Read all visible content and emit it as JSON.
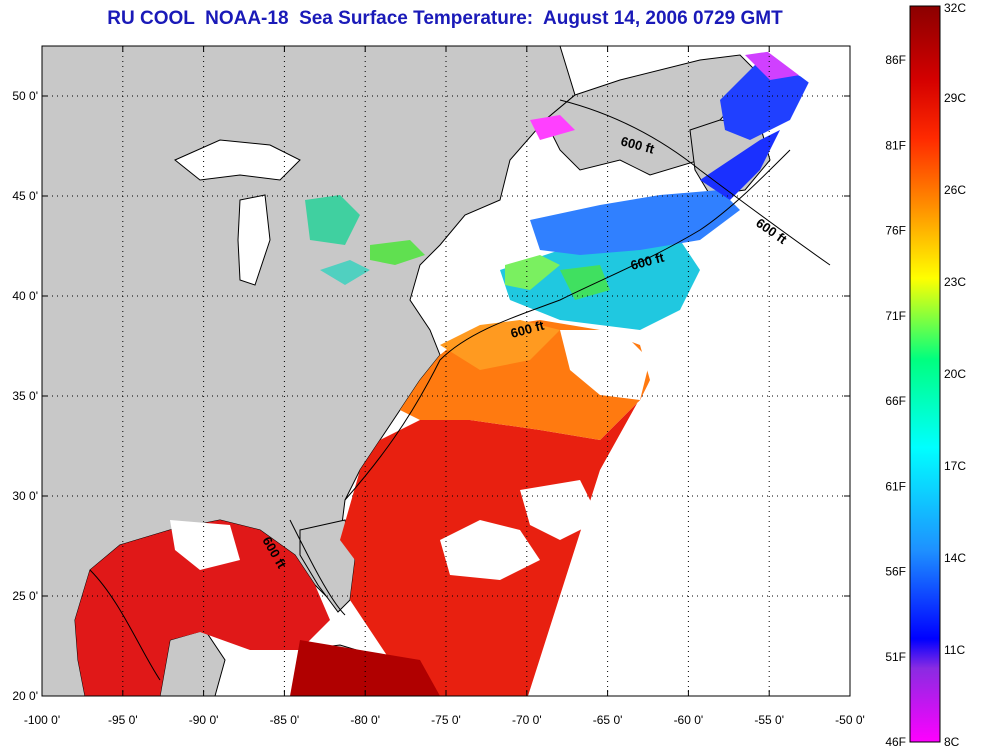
{
  "title": "RU COOL  NOAA-18  Sea Surface Temperature:  August 14, 2006 0729 GMT",
  "map": {
    "lon_range": [
      -100,
      -50
    ],
    "lat_range": [
      20,
      52.5
    ],
    "lon_ticks": [
      {
        "value": -100,
        "label": "-100 0'"
      },
      {
        "value": -95,
        "label": "-95 0'"
      },
      {
        "value": -90,
        "label": "-90 0'"
      },
      {
        "value": -85,
        "label": "-85 0'"
      },
      {
        "value": -80,
        "label": "-80 0'"
      },
      {
        "value": -75,
        "label": "-75 0'"
      },
      {
        "value": -70,
        "label": "-70 0'"
      },
      {
        "value": -65,
        "label": "-65 0'"
      },
      {
        "value": -60,
        "label": "-60 0'"
      },
      {
        "value": -55,
        "label": "-55 0'"
      },
      {
        "value": -50,
        "label": "-50 0'"
      }
    ],
    "lat_ticks": [
      {
        "value": 20,
        "label": "20 0'"
      },
      {
        "value": 25,
        "label": "25 0'"
      },
      {
        "value": 30,
        "label": "30 0'"
      },
      {
        "value": 35,
        "label": "35 0'"
      },
      {
        "value": 40,
        "label": "40 0'"
      },
      {
        "value": 45,
        "label": "45 0'"
      },
      {
        "value": 50,
        "label": "50 0'"
      }
    ],
    "grid": "dotted",
    "contour_label": "600 ft"
  },
  "colorbar": {
    "celsius_labels": [
      "32C",
      "29C",
      "26C",
      "23C",
      "20C",
      "17C",
      "14C",
      "11C",
      "8C"
    ],
    "fahrenheit_labels": [
      "86F",
      "81F",
      "76F",
      "71F",
      "66F",
      "61F",
      "56F",
      "51F",
      "46F"
    ],
    "colors": [
      "#8b0000",
      "#ff0000",
      "#ff8c00",
      "#ffff00",
      "#00ff7f",
      "#00ffff",
      "#1e90ff",
      "#0000ff",
      "#ff00ff"
    ]
  }
}
